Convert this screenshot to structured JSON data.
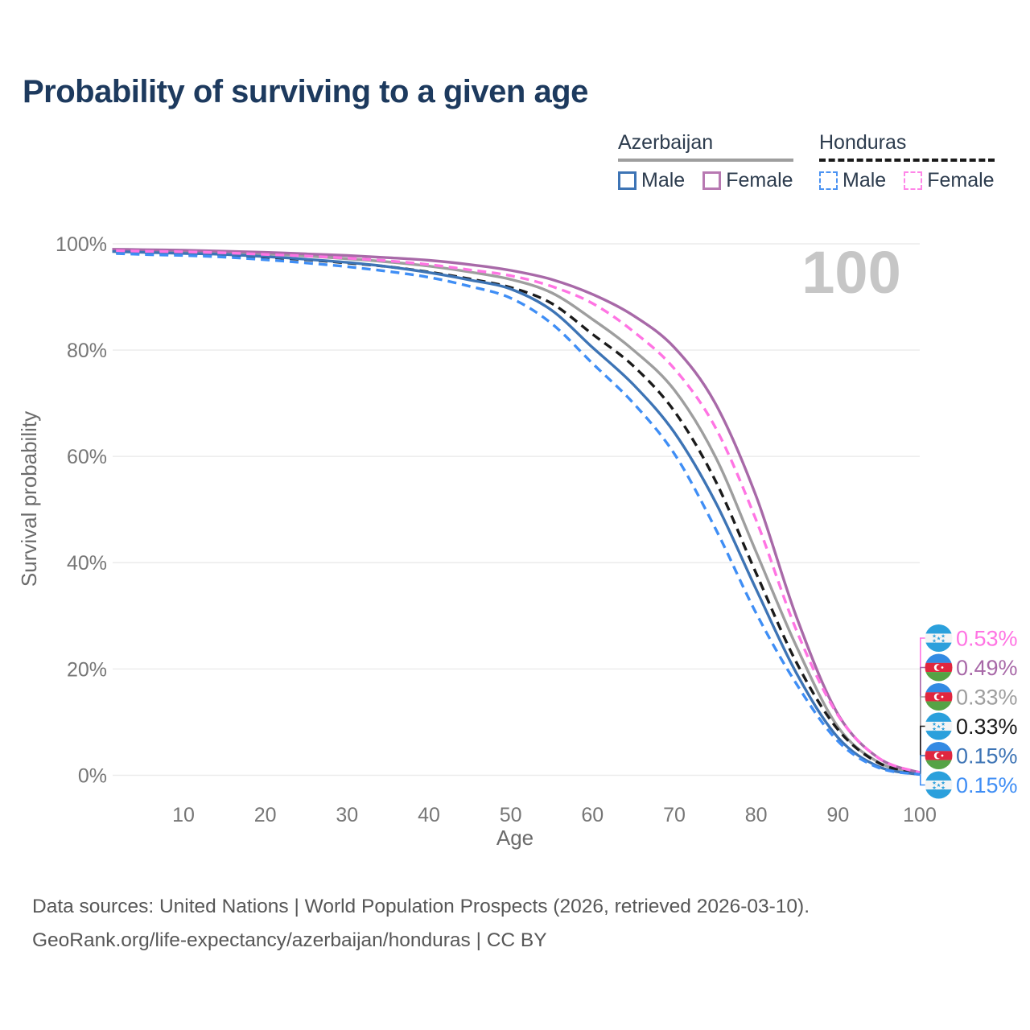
{
  "title": "Probability of surviving to a given age",
  "watermark": "100",
  "legend": {
    "groups": [
      {
        "country": "Azerbaijan",
        "underline_style": "solid",
        "underline_color": "#9e9e9e",
        "items": [
          {
            "label": "Male",
            "style": "solid",
            "color": "#3d74b5"
          },
          {
            "label": "Female",
            "style": "solid",
            "color": "#b879b2"
          }
        ]
      },
      {
        "country": "Honduras",
        "underline_style": "dashed",
        "underline_color": "#1a1a1a",
        "items": [
          {
            "label": "Male",
            "style": "dashed",
            "color": "#4b93f2"
          },
          {
            "label": "Female",
            "style": "dashed",
            "color": "#ff86e8"
          }
        ]
      }
    ]
  },
  "chart_data": {
    "type": "line",
    "title": "Probability of surviving to a given age",
    "xlabel": "Age",
    "ylabel": "Survival probability",
    "xlim": [
      0,
      100
    ],
    "ylim": [
      0,
      100
    ],
    "grid": "horizontal-only",
    "gridline_color": "#ebebeb",
    "highlight_age_watermark": "100",
    "x_ticks": [
      {
        "v": 10,
        "label": "10"
      },
      {
        "v": 20,
        "label": "20"
      },
      {
        "v": 30,
        "label": "30"
      },
      {
        "v": 40,
        "label": "40"
      },
      {
        "v": 50,
        "label": "50"
      },
      {
        "v": 60,
        "label": "60"
      },
      {
        "v": 70,
        "label": "70"
      },
      {
        "v": 80,
        "label": "80"
      },
      {
        "v": 90,
        "label": "90"
      },
      {
        "v": 100,
        "label": "100"
      }
    ],
    "y_ticks": [
      {
        "v": 0,
        "label": "0%"
      },
      {
        "v": 20,
        "label": "20%"
      },
      {
        "v": 40,
        "label": "40%"
      },
      {
        "v": 60,
        "label": "60%"
      },
      {
        "v": 80,
        "label": "80%"
      },
      {
        "v": 100,
        "label": "100%"
      }
    ],
    "ages": [
      0,
      5,
      10,
      15,
      20,
      25,
      30,
      35,
      40,
      45,
      50,
      55,
      60,
      65,
      70,
      75,
      80,
      85,
      90,
      95,
      100
    ],
    "series": [
      {
        "name": "Honduras Female",
        "country": "Honduras",
        "sex": "Female",
        "color": "#ff74e3",
        "dashed": true,
        "z": 5,
        "end_label": "0.53%",
        "values": [
          98.8,
          98.6,
          98.5,
          98.3,
          98.0,
          97.7,
          97.3,
          96.8,
          96.1,
          95.1,
          94.0,
          92.0,
          88.8,
          83.5,
          76.5,
          65.5,
          48.0,
          27.0,
          11.3,
          3.2,
          0.53
        ]
      },
      {
        "name": "Azerbaijan Female",
        "country": "Azerbaijan",
        "sex": "Female",
        "color": "#a869a8",
        "dashed": false,
        "z": 3,
        "end_label": "0.49%",
        "values": [
          99.0,
          98.9,
          98.8,
          98.6,
          98.4,
          98.1,
          97.8,
          97.4,
          96.9,
          96.1,
          95.0,
          93.3,
          90.5,
          86.5,
          80.5,
          70.0,
          52.5,
          29.5,
          11.5,
          3.2,
          0.49
        ]
      },
      {
        "name": "Azerbaijan Total",
        "country": "Azerbaijan",
        "sex": "Both",
        "color": "#9e9e9e",
        "dashed": false,
        "z": 1,
        "end_label": "0.33%",
        "values": [
          98.8,
          98.7,
          98.6,
          98.4,
          98.1,
          97.7,
          97.2,
          96.6,
          95.8,
          94.7,
          93.3,
          90.8,
          85.8,
          80.0,
          72.5,
          60.0,
          42.0,
          24.0,
          9.1,
          2.4,
          0.33
        ]
      },
      {
        "name": "Honduras Total",
        "country": "Honduras",
        "sex": "Both",
        "color": "#1b1b1b",
        "dashed": true,
        "z": 2,
        "end_label": "0.33%",
        "values": [
          98.5,
          98.3,
          98.1,
          97.9,
          97.5,
          97.0,
          96.4,
          95.7,
          94.7,
          93.4,
          91.8,
          88.8,
          83.0,
          77.0,
          68.5,
          55.5,
          38.0,
          21.0,
          8.6,
          2.3,
          0.33
        ]
      },
      {
        "name": "Azerbaijan Male",
        "country": "Azerbaijan",
        "sex": "Male",
        "color": "#3d74b5",
        "dashed": false,
        "z": 4,
        "end_label": "0.15%",
        "values": [
          98.6,
          98.4,
          98.2,
          98.0,
          97.6,
          97.1,
          96.5,
          95.7,
          94.6,
          93.2,
          91.5,
          87.5,
          80.5,
          73.5,
          64.5,
          51.5,
          35.0,
          19.0,
          7.1,
          1.6,
          0.15
        ]
      },
      {
        "name": "Honduras Male",
        "country": "Honduras",
        "sex": "Male",
        "color": "#3f8ef5",
        "dashed": true,
        "z": 6,
        "end_label": "0.15%",
        "values": [
          98.3,
          98.0,
          97.8,
          97.5,
          97.0,
          96.4,
          95.7,
          94.8,
          93.7,
          92.0,
          89.8,
          85.0,
          77.5,
          70.0,
          60.5,
          46.5,
          30.5,
          17.0,
          6.4,
          1.4,
          0.15
        ]
      }
    ],
    "flag_colors": {
      "honduras_blue": "#2ba0dc",
      "honduras_white": "#f4f4f4",
      "azerbaijan_blue": "#338ae3",
      "azerbaijan_red": "#e0263f",
      "azerbaijan_green": "#55a345"
    }
  },
  "footer": {
    "line1": "Data sources: United Nations | World Population Prospects (2026, retrieved 2026-03-10).",
    "line2": "GeoRank.org/life-expectancy/azerbaijan/honduras | CC BY"
  }
}
